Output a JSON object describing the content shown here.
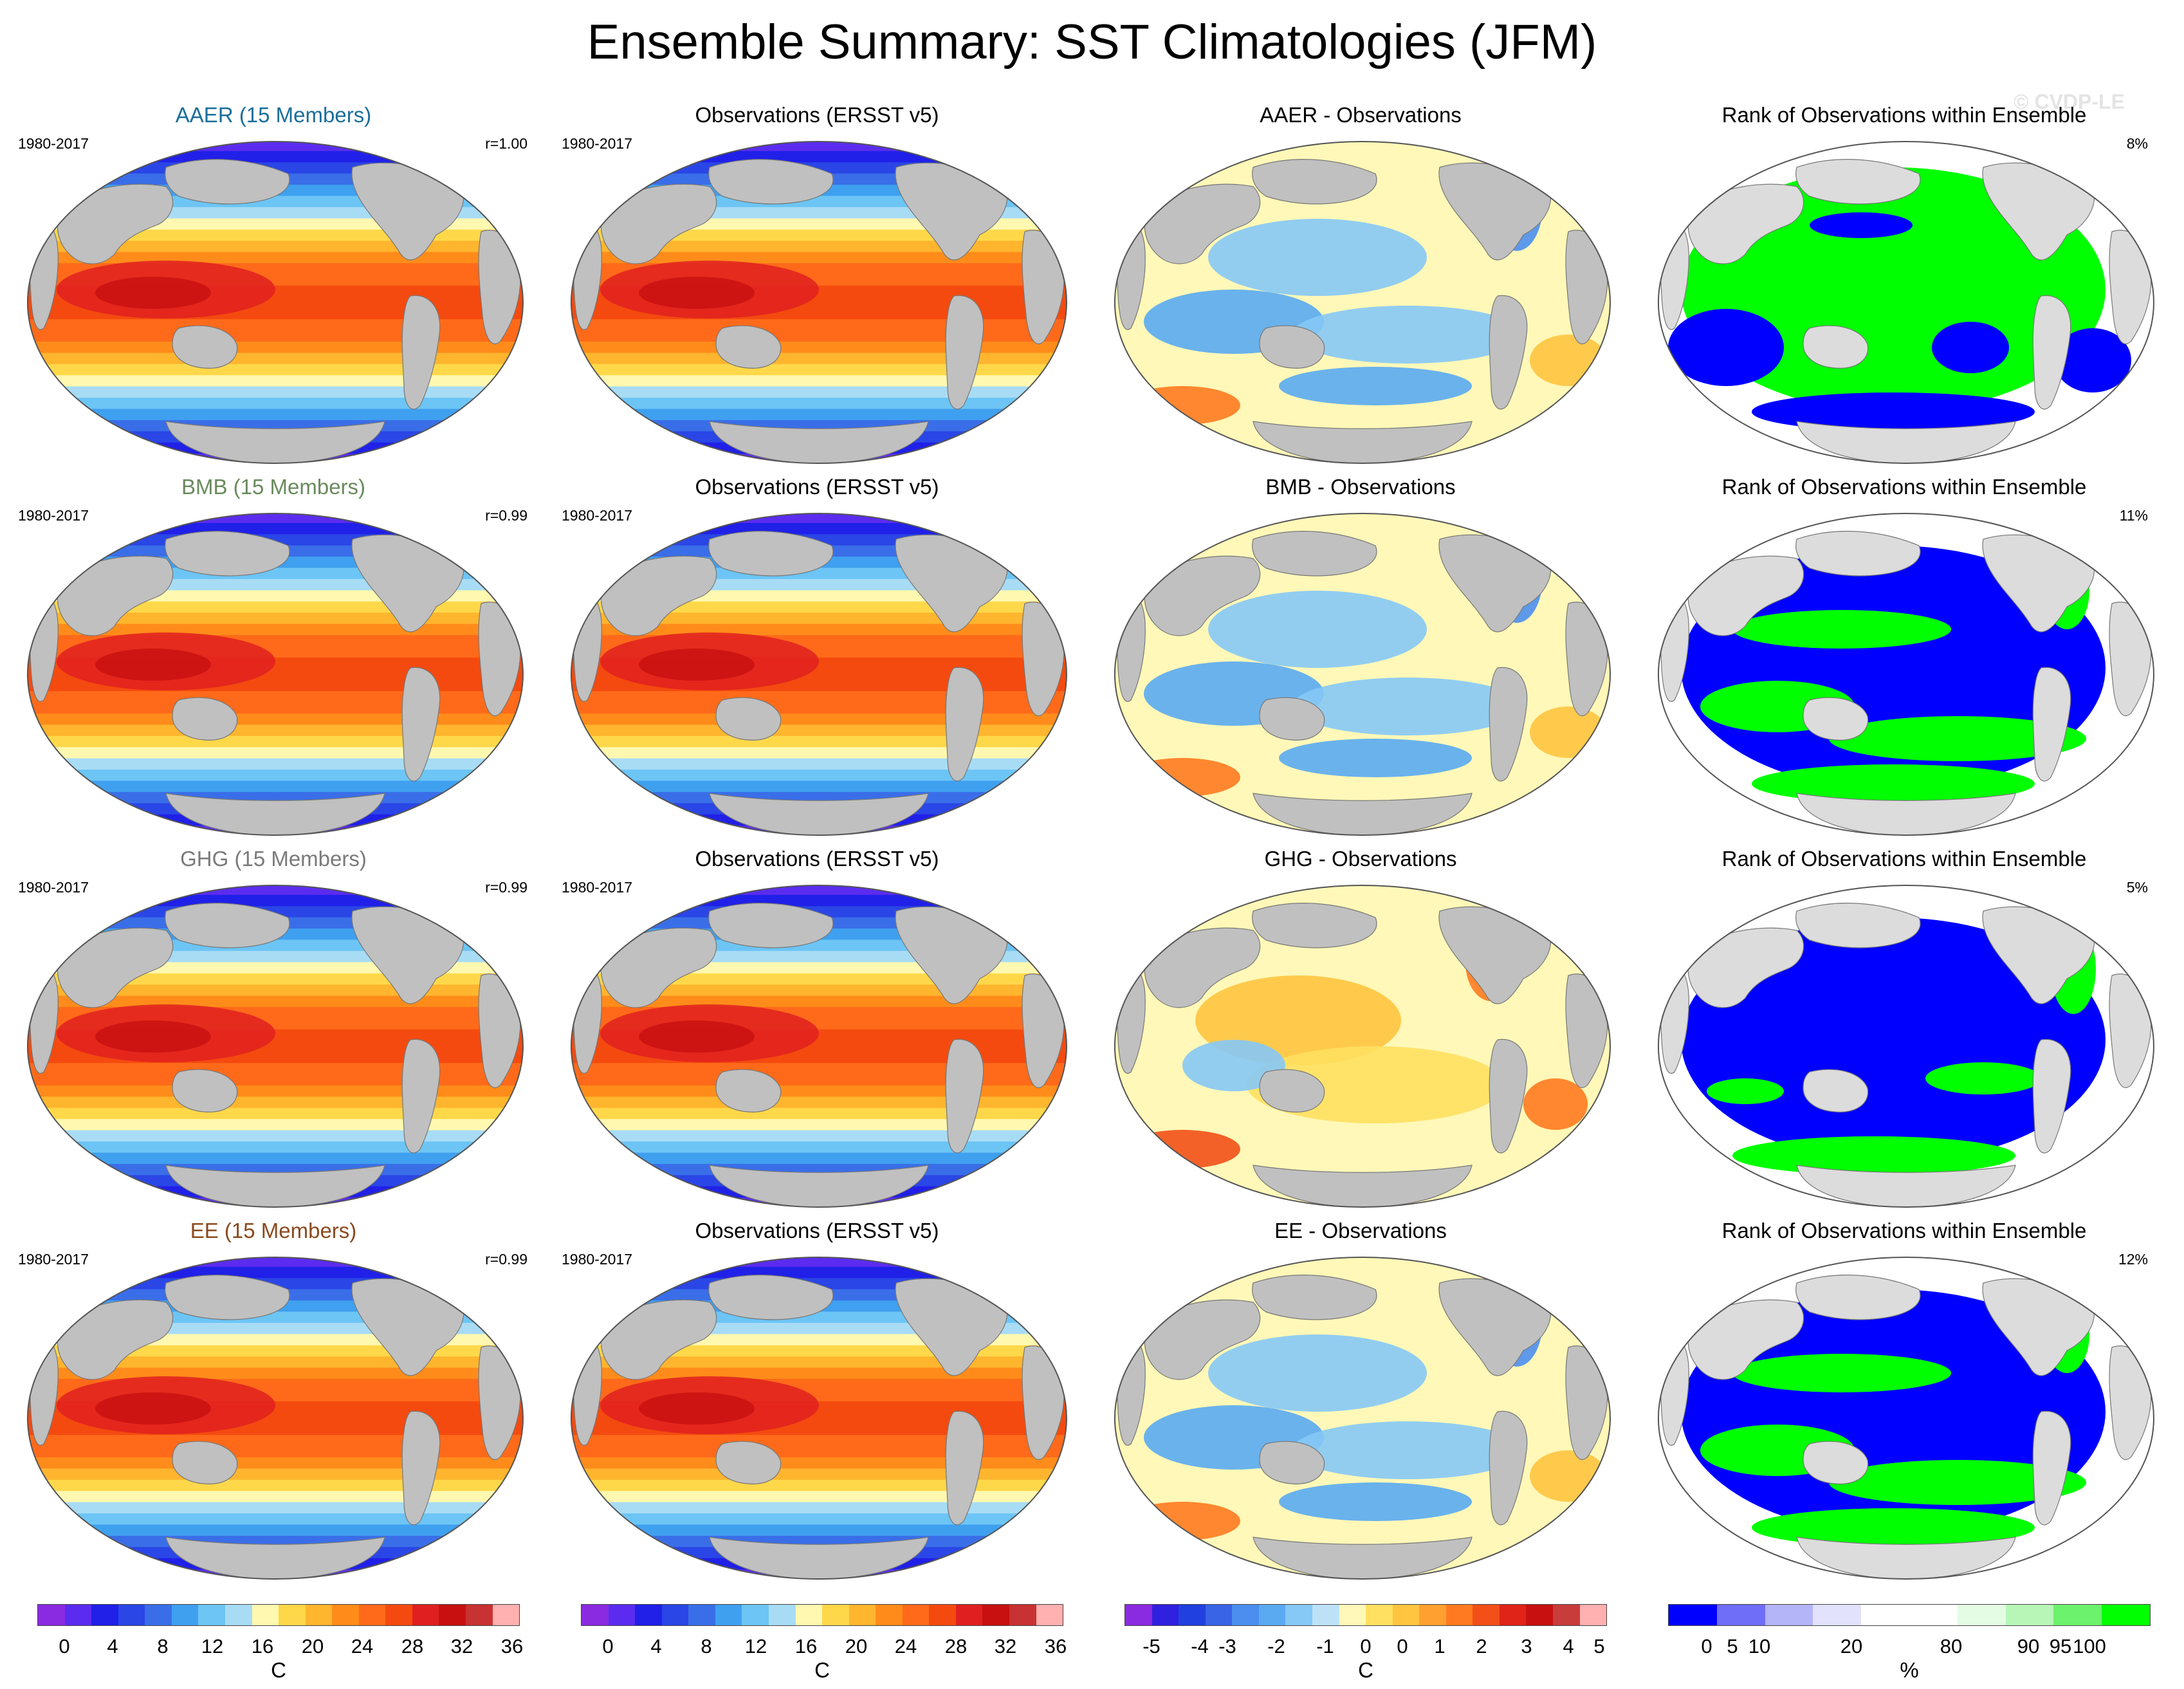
{
  "figure": {
    "title": "Ensemble Summary: SST Climatologies (JFM)",
    "watermark": "© CVDP-LE"
  },
  "colors": {
    "ocean_land": "#c0c0c0",
    "aaer": "#1b6e9a",
    "bmb": "#6a8a5e",
    "ghg": "#7a7a7a",
    "ee": "#8a4a1e",
    "rank_low": "#0000ff",
    "rank_high": "#00ff00"
  },
  "rows": [
    {
      "ensemble": {
        "title": "AAER (15 Members)",
        "period": "1980-2017",
        "corr": "r=1.00",
        "color": "#1b6e9a"
      },
      "obs": {
        "title": "Observations (ERSST v5)",
        "period": "1980-2017"
      },
      "diff": {
        "title": "AAER - Observations"
      },
      "rank": {
        "title": "Rank of Observations within Ensemble",
        "pct": "8%"
      }
    },
    {
      "ensemble": {
        "title": "BMB (15 Members)",
        "period": "1980-2017",
        "corr": "r=0.99",
        "color": "#6a8a5e"
      },
      "obs": {
        "title": "Observations (ERSST v5)",
        "period": "1980-2017"
      },
      "diff": {
        "title": "BMB - Observations"
      },
      "rank": {
        "title": "Rank of Observations within Ensemble",
        "pct": "11%"
      }
    },
    {
      "ensemble": {
        "title": "GHG (15 Members)",
        "period": "1980-2017",
        "corr": "r=0.99",
        "color": "#7a7a7a"
      },
      "obs": {
        "title": "Observations (ERSST v5)",
        "period": "1980-2017"
      },
      "diff": {
        "title": "GHG - Observations"
      },
      "rank": {
        "title": "Rank of Observations within Ensemble",
        "pct": "5%"
      }
    },
    {
      "ensemble": {
        "title": "EE (15 Members)",
        "period": "1980-2017",
        "corr": "r=0.99",
        "color": "#8a4a1e"
      },
      "obs": {
        "title": "Observations (ERSST v5)",
        "period": "1980-2017"
      },
      "diff": {
        "title": "EE - Observations"
      },
      "rank": {
        "title": "Rank of Observations within Ensemble",
        "pct": "12%"
      }
    }
  ],
  "colorbars": {
    "sst": {
      "unit": "C",
      "colors": [
        "#8a2be2",
        "#5b2cf0",
        "#2020e8",
        "#2a46e6",
        "#3a6ee8",
        "#3fa0f0",
        "#6cc5f5",
        "#a8dcf5",
        "#fff8b0",
        "#ffd84a",
        "#ffb52e",
        "#ff8c1a",
        "#ff6a1a",
        "#f44a0f",
        "#e02020",
        "#c81010",
        "#c83232",
        "#ffb0b0"
      ],
      "labels": [
        "0",
        "4",
        "8",
        "12",
        "16",
        "20",
        "24",
        "28",
        "32",
        "36"
      ]
    },
    "diff": {
      "unit": "C",
      "colors": [
        "#8a2be2",
        "#3020e0",
        "#2040e0",
        "#3a64e6",
        "#4c8ef0",
        "#5aaaf2",
        "#86c8f6",
        "#bde2f8",
        "#fff8b8",
        "#ffe060",
        "#ffc440",
        "#ffa030",
        "#ff7a20",
        "#f25018",
        "#e02418",
        "#c81010",
        "#c83c3c",
        "#ffb0b0"
      ],
      "labels": [
        "-5",
        "-4",
        "-3",
        "-2",
        "-1",
        "0",
        "0",
        "1",
        "2",
        "3",
        "4",
        "5"
      ]
    },
    "rank": {
      "unit": "%",
      "colors": [
        "#0000ff",
        "#6e6ef8",
        "#b4b4f8",
        "#e2e2fc",
        "#ffffff",
        "#ffffff",
        "#e4fbe4",
        "#b8f6b8",
        "#6cf26c",
        "#00ff00"
      ],
      "labels": [
        "0",
        "5",
        "10",
        "20",
        "80",
        "90",
        "95",
        "100"
      ]
    }
  }
}
